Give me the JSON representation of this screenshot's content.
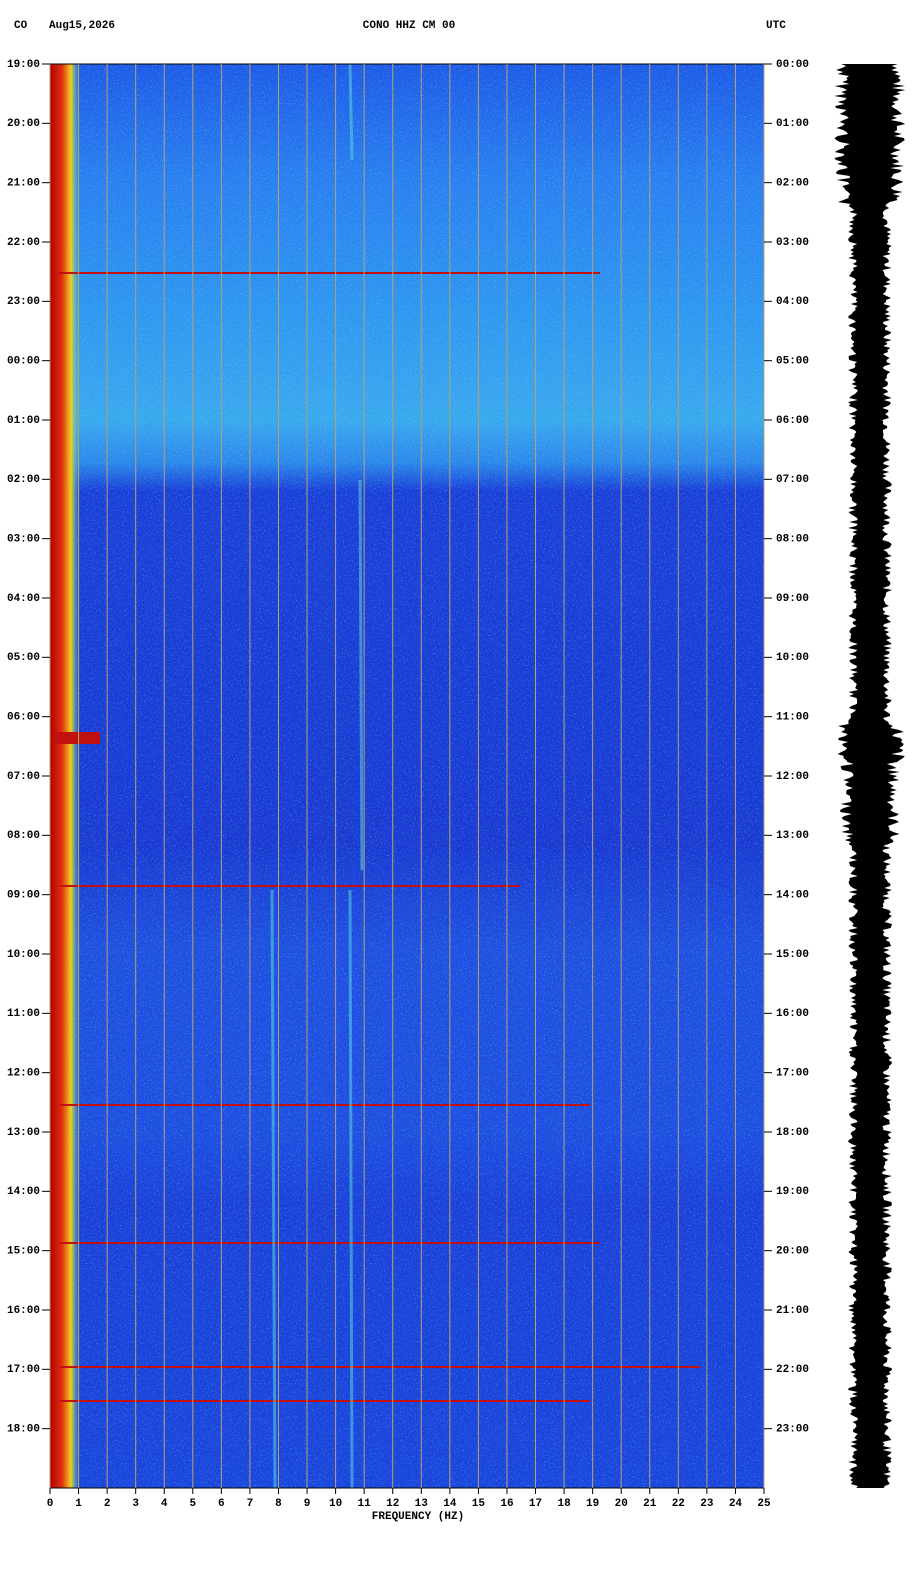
{
  "chart_data": {
    "type": "spectrogram",
    "network": "CO",
    "date": "Aug15,2026",
    "title": "CONO HHZ CM 00",
    "timezone": "UTC",
    "xlabel": "FREQUENCY (HZ)",
    "xlim": [
      0,
      25
    ],
    "xticks": [
      0,
      1,
      2,
      3,
      4,
      5,
      6,
      7,
      8,
      9,
      10,
      11,
      12,
      13,
      14,
      15,
      16,
      17,
      18,
      19,
      20,
      21,
      22,
      23,
      24,
      25
    ],
    "grid": true,
    "ylim": [
      0,
      24
    ],
    "yticks": [
      {
        "value": 0,
        "label": "19:00"
      },
      {
        "value": 1,
        "label": "20:00"
      },
      {
        "value": 2,
        "label": "21:00"
      },
      {
        "value": 3,
        "label": "22:00"
      },
      {
        "value": 4,
        "label": "23:00"
      },
      {
        "value": 5,
        "label": "00:00"
      },
      {
        "value": 6,
        "label": "01:00"
      },
      {
        "value": 7,
        "label": "02:00"
      },
      {
        "value": 8,
        "label": "03:00"
      },
      {
        "value": 9,
        "label": "04:00"
      },
      {
        "value": 10,
        "label": "05:00"
      },
      {
        "value": 11,
        "label": "06:00"
      },
      {
        "value": 12,
        "label": "07:00"
      },
      {
        "value": 13,
        "label": "08:00"
      },
      {
        "value": 14,
        "label": "09:00"
      },
      {
        "value": 15,
        "label": "10:00"
      },
      {
        "value": 16,
        "label": "11:00"
      },
      {
        "value": 17,
        "label": "12:00"
      },
      {
        "value": 18,
        "label": "13:00"
      },
      {
        "value": 19,
        "label": "14:00"
      },
      {
        "value": 20,
        "label": "15:00"
      },
      {
        "value": 21,
        "label": "16:00"
      },
      {
        "value": 22,
        "label": "17:00"
      },
      {
        "value": 23,
        "label": "18:00"
      }
    ],
    "y2lim": [
      0,
      24
    ],
    "y2ticks": [
      {
        "value": 0,
        "label": "00:00"
      },
      {
        "value": 1,
        "label": "01:00"
      },
      {
        "value": 2,
        "label": "02:00"
      },
      {
        "value": 3,
        "label": "03:00"
      },
      {
        "value": 4,
        "label": "04:00"
      },
      {
        "value": 5,
        "label": "05:00"
      },
      {
        "value": 6,
        "label": "06:00"
      },
      {
        "value": 7,
        "label": "07:00"
      },
      {
        "value": 8,
        "label": "08:00"
      },
      {
        "value": 9,
        "label": "09:00"
      },
      {
        "value": 10,
        "label": "10:00"
      },
      {
        "value": 11,
        "label": "11:00"
      },
      {
        "value": 12,
        "label": "12:00"
      },
      {
        "value": 13,
        "label": "13:00"
      },
      {
        "value": 14,
        "label": "14:00"
      },
      {
        "value": 15,
        "label": "15:00"
      },
      {
        "value": 16,
        "label": "16:00"
      },
      {
        "value": 17,
        "label": "17:00"
      },
      {
        "value": 18,
        "label": "18:00"
      },
      {
        "value": 19,
        "label": "19:00"
      },
      {
        "value": 20,
        "label": "20:00"
      },
      {
        "value": 21,
        "label": "21:00"
      },
      {
        "value": 22,
        "label": "22:00"
      },
      {
        "value": 23,
        "label": "23:00"
      }
    ]
  }
}
